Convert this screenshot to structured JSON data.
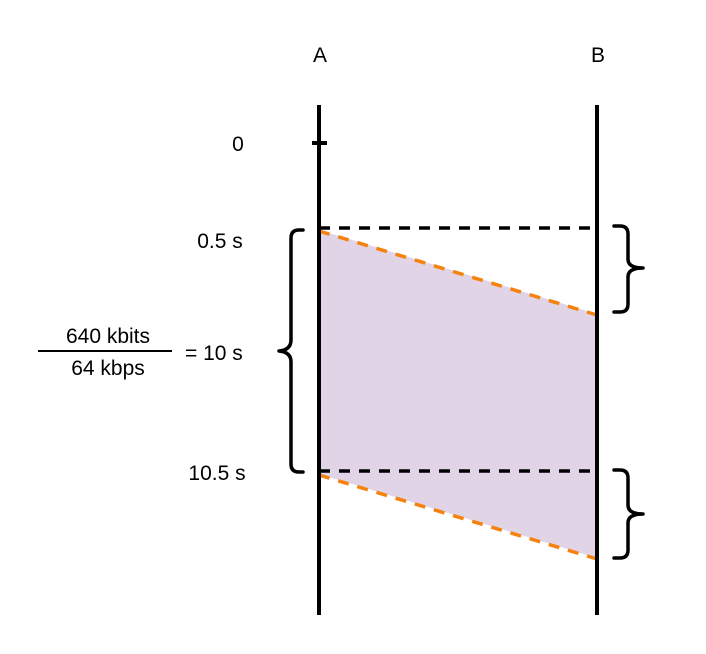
{
  "nodes": {
    "a": "A",
    "b": "B"
  },
  "time_labels": {
    "t0": "0",
    "t1": "0.5 s",
    "t2": "10.5 s"
  },
  "equation": {
    "numerator": "640 kbits",
    "denominator": "64 kbps",
    "result": "= 10 s"
  },
  "colors": {
    "line": "#000000",
    "dashed_horizontal": "#000000",
    "dashed_propagation": "#f5820d",
    "fill": "#e1d4e7"
  }
}
